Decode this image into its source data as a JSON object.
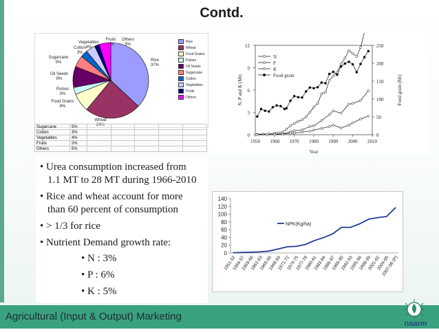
{
  "slide": {
    "title": "Contd.",
    "footer": "Agricultural (Input & Output) Marketing",
    "logo_text": "naarm",
    "bullets": [
      "• Urea consumption increased from",
      "1.1 MT to 28 MT during 1966-2010",
      "• Rice and wheat account for more",
      "than 60 percent of consumption",
      "• > 1/3 for  rice",
      "• Nutrient Demand growth rate:",
      "• N :  3%",
      "• P :  6%",
      "• K :  5%"
    ]
  },
  "colors": {
    "accent": "#3aa27f",
    "side_bar": "#5ba98a",
    "footer_text": "#1e2a36"
  },
  "chart_data": [
    {
      "type": "pie",
      "categories": [
        "Rice",
        "Wheat",
        "Food Grains",
        "Pulses",
        "Oil Seeds",
        "Sugarcane",
        "Cotton",
        "Vegetables",
        "Fruits",
        "Others"
      ],
      "values": [
        37,
        24,
        8,
        3,
        9,
        5,
        3,
        4,
        2,
        5
      ],
      "labels": [
        "Rice\n37%",
        "Wheat\n24%",
        "Food Grains\n8%",
        "Pulses\n3%",
        "Oil Seeds\n9%",
        "Sugarcane\n5%",
        "Cotton\n3%",
        "Vegetables\n4%",
        "Fruits\n2%",
        "Others\n5%"
      ],
      "colors": [
        "#9c9cff",
        "#993366",
        "#ffffcc",
        "#ccffff",
        "#660066",
        "#ff8080",
        "#0066cc",
        "#ccccff",
        "#000080",
        "#ff00ff"
      ],
      "legend_position": "right",
      "table_rows": [
        [
          "Sugarcane",
          "5%"
        ],
        [
          "Cotton",
          "3%"
        ],
        [
          "Vegetables",
          "4%"
        ],
        [
          "Fruits",
          "2%"
        ],
        [
          "Others",
          "5%"
        ]
      ]
    },
    {
      "type": "line",
      "xlabel": "Year",
      "ylabel": "N, P and K (Mt)",
      "y2label": "Food grain (Mt)",
      "xlim": [
        1950,
        2010
      ],
      "ylim": [
        0,
        12
      ],
      "y2lim": [
        0,
        250
      ],
      "xticks": [
        "1950",
        "1960",
        "1970",
        "1980",
        "1990",
        "2000",
        "2010"
      ],
      "yticks": [
        "0",
        "3",
        "6",
        "9",
        "12"
      ],
      "y2ticks": [
        "0",
        "50",
        "100",
        "150",
        "200",
        "250"
      ],
      "legend_position": "top-left",
      "grid": false,
      "series": [
        {
          "name": "N",
          "marker": "open-circle",
          "x": [
            1951,
            1954,
            1957,
            1960,
            1962,
            1964,
            1966,
            1968,
            1970,
            1972,
            1974,
            1976,
            1978,
            1980,
            1982,
            1984,
            1986,
            1988,
            1990,
            1992,
            1994,
            1996,
            1998,
            2000,
            2002,
            2004,
            2006,
            2008
          ],
          "values": [
            0.06,
            0.09,
            0.12,
            0.21,
            0.25,
            0.36,
            0.74,
            1.2,
            1.5,
            1.8,
            2.0,
            2.4,
            3.0,
            3.7,
            4.2,
            5.5,
            5.7,
            7.3,
            7.9,
            8.4,
            9.5,
            10.3,
            11.3,
            10.9,
            10.5,
            11.7,
            13.8,
            15.1
          ]
        },
        {
          "name": "P",
          "marker": "open-circle",
          "x": [
            1951,
            1956,
            1960,
            1964,
            1968,
            1970,
            1974,
            1978,
            1980,
            1984,
            1988,
            1990,
            1994,
            1998,
            2000,
            2004,
            2008
          ],
          "values": [
            0.01,
            0.02,
            0.05,
            0.12,
            0.38,
            0.54,
            0.65,
            1.1,
            1.2,
            1.9,
            2.7,
            3.2,
            2.9,
            4.1,
            4.2,
            4.6,
            5.9
          ]
        },
        {
          "name": "K",
          "marker": "open-circle",
          "x": [
            1951,
            1956,
            1960,
            1964,
            1968,
            1970,
            1974,
            1978,
            1980,
            1984,
            1988,
            1990,
            1994,
            1998,
            2000,
            2004,
            2008
          ],
          "values": [
            0.0,
            0.01,
            0.03,
            0.07,
            0.17,
            0.23,
            0.34,
            0.48,
            0.62,
            0.84,
            1.1,
            1.3,
            0.9,
            1.3,
            1.6,
            2.1,
            2.5
          ]
        },
        {
          "name": "Food grain",
          "marker": "filled-circle",
          "axis": "right",
          "x": [
            1951,
            1953,
            1955,
            1957,
            1959,
            1961,
            1963,
            1965,
            1966,
            1968,
            1970,
            1972,
            1974,
            1976,
            1978,
            1980,
            1982,
            1984,
            1986,
            1988,
            1990,
            1992,
            1994,
            1996,
            1998,
            2000,
            2002,
            2004,
            2006,
            2008
          ],
          "values": [
            51,
            72,
            67,
            65,
            77,
            82,
            80,
            72,
            74,
            95,
            108,
            105,
            104,
            121,
            132,
            130,
            133,
            146,
            144,
            170,
            176,
            168,
            191,
            199,
            204,
            197,
            175,
            198,
            217,
            234
          ]
        }
      ]
    },
    {
      "type": "line",
      "categories": [
        "1951-52",
        "1956-57",
        "1959-60",
        "1962-63",
        "1965-66",
        "1968-69",
        "1971-72",
        "1974-75",
        "1977-78",
        "1980-81",
        "1983-84",
        "1986-87",
        "1989-90",
        "1992-93",
        "1995-96",
        "1998-99",
        "2001-02",
        "2004-05",
        "2007-08 (P)"
      ],
      "ylim": [
        0,
        140
      ],
      "yticks": [
        "0",
        "20",
        "40",
        "60",
        "80",
        "100",
        "120",
        "140"
      ],
      "legend_position": "right",
      "series": [
        {
          "name": "NPK(Kg/ha)",
          "values": [
            0.6,
            1.2,
            2.0,
            2.9,
            5.0,
            10.5,
            16.0,
            17.0,
            22.0,
            32.0,
            39.5,
            49.0,
            66.0,
            66.0,
            75.0,
            87.0,
            91.0,
            94.0,
            117.0
          ]
        }
      ]
    }
  ]
}
